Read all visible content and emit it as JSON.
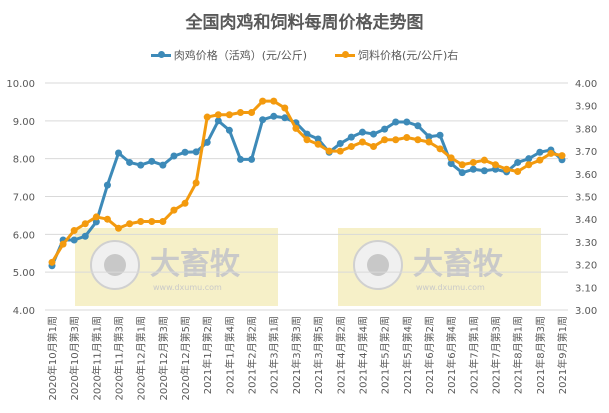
{
  "title": "全国肉鸡和饲料每周价格走势图",
  "legend": [
    {
      "label": "肉鸡价格（活鸡）(元/公斤)",
      "color": "#3d8ab8"
    },
    {
      "label": "饲料价格(元/公斤)右",
      "color": "#f39a0e"
    }
  ],
  "watermark": {
    "brand": "大畜牧",
    "url": "www.dxumu.com"
  },
  "chart_data": {
    "type": "line",
    "title": "全国肉鸡和饲料每周价格走势图",
    "xlabel": "",
    "ylabel_left": "肉鸡价格（活鸡）(元/公斤)",
    "ylabel_right": "饲料价格(元/公斤)",
    "ylim_left": [
      4.0,
      10.0
    ],
    "ylim_right": [
      3.0,
      4.0
    ],
    "yticks_left": [
      "10.00",
      "9.00",
      "8.00",
      "7.00",
      "6.00",
      "5.00",
      "4.00"
    ],
    "yticks_right": [
      "4.00",
      "3.90",
      "3.80",
      "3.70",
      "3.60",
      "3.50",
      "3.40",
      "3.30",
      "3.20",
      "3.10",
      "3.00"
    ],
    "grid": true,
    "legend_position": "top",
    "x_tick_labels": [
      "2020年10月第1周",
      "2020年10月第3周",
      "2020年11月第1周",
      "2020年11月第3周",
      "2020年12月第1周",
      "2020年12月第3周",
      "2020年12月第5周",
      "2021年1月第2周",
      "2021年1月第4周",
      "2021年2月第2周",
      "2021年3月第1周",
      "2021年3月第3周",
      "2021年3月第5周",
      "2021年4月第2周",
      "2021年4月第4周",
      "2021年5月第2周",
      "2021年5月第4周",
      "2021年6月第2周",
      "2021年6月第4周",
      "2021年7月第1周",
      "2021年7月第3周",
      "2021年8月第1周",
      "2021年8月第3周",
      "2021年9月第1周"
    ],
    "series": [
      {
        "name": "肉鸡价格（活鸡）(元/公斤)",
        "axis": "left",
        "color": "#3d8ab8",
        "values": [
          5.17,
          5.85,
          5.85,
          5.95,
          6.33,
          7.3,
          8.15,
          7.9,
          7.83,
          7.93,
          7.83,
          8.07,
          8.17,
          8.18,
          8.43,
          9.0,
          8.75,
          7.98,
          7.98,
          9.03,
          9.12,
          9.08,
          8.95,
          8.65,
          8.52,
          8.17,
          8.4,
          8.57,
          8.7,
          8.65,
          8.78,
          8.97,
          8.97,
          8.87,
          8.58,
          8.62,
          7.87,
          7.63,
          7.72,
          7.68,
          7.72,
          7.65,
          7.9,
          8.0,
          8.17,
          8.23,
          7.97
        ]
      },
      {
        "name": "饲料价格(元/公斤)右",
        "axis": "right",
        "color": "#f39a0e",
        "values": [
          3.21,
          3.29,
          3.35,
          3.38,
          3.41,
          3.4,
          3.36,
          3.38,
          3.39,
          3.39,
          3.39,
          3.44,
          3.47,
          3.56,
          3.85,
          3.86,
          3.86,
          3.87,
          3.87,
          3.92,
          3.92,
          3.89,
          3.8,
          3.75,
          3.73,
          3.7,
          3.7,
          3.72,
          3.74,
          3.72,
          3.75,
          3.75,
          3.76,
          3.75,
          3.74,
          3.71,
          3.67,
          3.64,
          3.65,
          3.66,
          3.64,
          3.62,
          3.61,
          3.64,
          3.66,
          3.69,
          3.68
        ]
      }
    ]
  }
}
